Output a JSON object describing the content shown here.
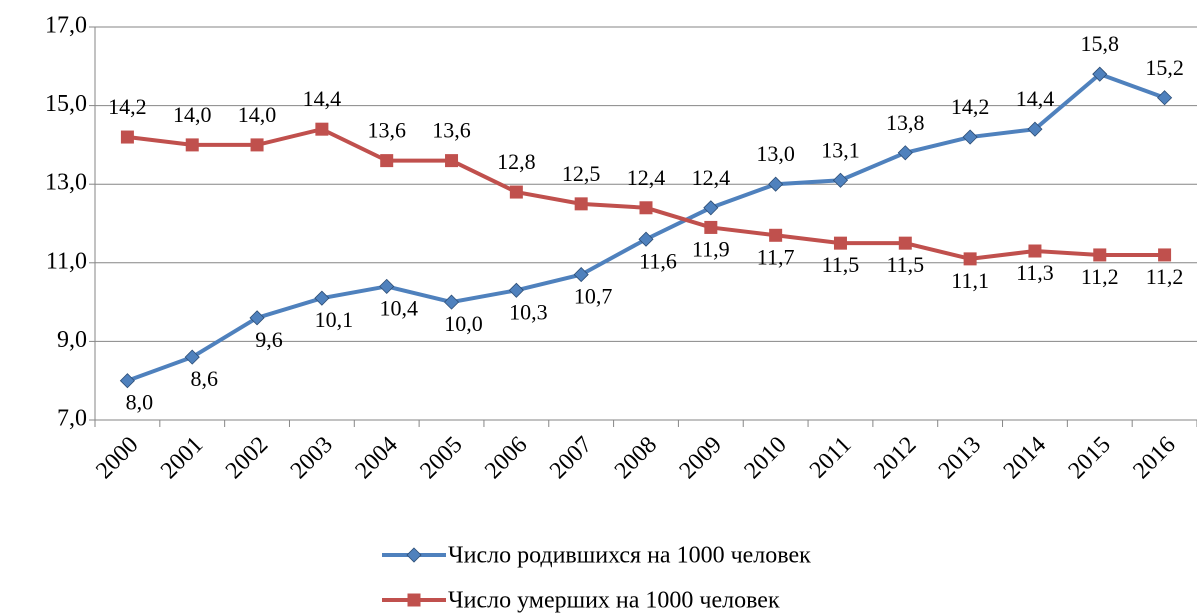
{
  "chart_data": {
    "type": "line",
    "categories": [
      "2000",
      "2001",
      "2002",
      "2003",
      "2004",
      "2005",
      "2006",
      "2007",
      "2008",
      "2009",
      "2010",
      "2011",
      "2012",
      "2013",
      "2014",
      "2015",
      "2016"
    ],
    "series": [
      {
        "name": "Число родившихся на 1000 человек",
        "color": "#4f81bd",
        "marker": "diamond",
        "values": [
          8.0,
          8.6,
          9.6,
          10.1,
          10.4,
          10.0,
          10.3,
          10.7,
          11.6,
          12.4,
          13.0,
          13.1,
          13.8,
          14.2,
          14.4,
          15.8,
          15.2
        ],
        "value_labels": [
          "8,0",
          "8,6",
          "9,6",
          "10,1",
          "10,4",
          "10,0",
          "10,3",
          "10,7",
          "11,6",
          "12,4",
          "13,0",
          "13,1",
          "13,8",
          "14,2",
          "14,4",
          "15,8",
          "15,2"
        ]
      },
      {
        "name": "Число умерших на 1000 человек",
        "color": "#c0504d",
        "marker": "square",
        "values": [
          14.2,
          14.0,
          14.0,
          14.4,
          13.6,
          13.6,
          12.8,
          12.5,
          12.4,
          11.9,
          11.7,
          11.5,
          11.5,
          11.1,
          11.3,
          11.2,
          11.2
        ],
        "value_labels": [
          "14,2",
          "14,0",
          "14,0",
          "14,4",
          "13,6",
          "13,6",
          "12,8",
          "12,5",
          "12,4",
          "11,9",
          "11,7",
          "11,5",
          "11,5",
          "11,1",
          "11,3",
          "11,2",
          "11,2"
        ]
      }
    ],
    "ylim": [
      7.0,
      17.0
    ],
    "yticks": [
      {
        "value": 7.0,
        "label": "7,0"
      },
      {
        "value": 9.0,
        "label": "9,0"
      },
      {
        "value": 11.0,
        "label": "11,0"
      },
      {
        "value": 13.0,
        "label": "13,0"
      },
      {
        "value": 15.0,
        "label": "15,0"
      },
      {
        "value": 17.0,
        "label": "17,0"
      }
    ],
    "grid": true,
    "legend": "bottom"
  }
}
